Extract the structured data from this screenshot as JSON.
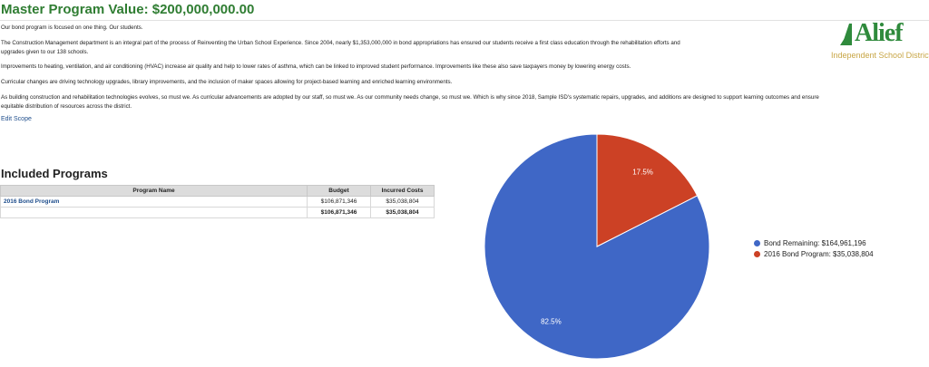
{
  "header": {
    "title": "Master Program Value: $200,000,000.00"
  },
  "logo": {
    "name": "Alief",
    "subtitle": "Independent School District",
    "color": "#2f8a3c",
    "subtitle_color": "#c8a646"
  },
  "intro": {
    "p1": "Our bond program is focused on one thing. Our students.",
    "p2": "The Construction Management department is an integral part of the process of Reinventing the Urban School Experience. Since 2004, nearly $1,353,000,000 in bond appropriations has ensured our students receive a first class education through the rehabilitation efforts and upgrades given to our 138 schools.",
    "p3": "Improvements to heating, ventilation, and air conditioning (HVAC) increase air quality and help to lower rates of asthma, which can be linked to improved student performance. Improvements like these also save taxpayers money by lowering energy costs.",
    "p4": "Curricular changes are driving technology upgrades, library improvements, and the inclusion of maker spaces allowing for project-based learning and enriched learning environments.",
    "p5": "As building construction and rehabilitation technologies evolves, so must we. As curricular advancements are adopted by our staff, so must we. As our community needs change, so must we. Which is why since 2018, Sample ISD's systematic repairs, upgrades, and additions are designed to support learning outcomes and ensure equitable distribution of resources across the district."
  },
  "edit_scope_label": "Edit Scope",
  "programs": {
    "section_title": "Included Programs",
    "columns": [
      "Program Name",
      "Budget",
      "Incurred Costs"
    ],
    "rows": [
      {
        "name": "2016 Bond Program",
        "budget": "$106,871,346",
        "incurred": "$35,038,804"
      }
    ],
    "totals": {
      "budget": "$106,871,346",
      "incurred": "$35,038,804"
    }
  },
  "chart_data": {
    "type": "pie",
    "slices": [
      {
        "label": "Bond Remaining: $164,961,196",
        "value": 164961196,
        "percent_label": "82.5%",
        "color": "#3f67c6"
      },
      {
        "label": "2016 Bond Program: $35,038,804",
        "value": 35038804,
        "percent_label": "17.5%",
        "color": "#cc4125"
      }
    ],
    "legend_position": "right"
  }
}
